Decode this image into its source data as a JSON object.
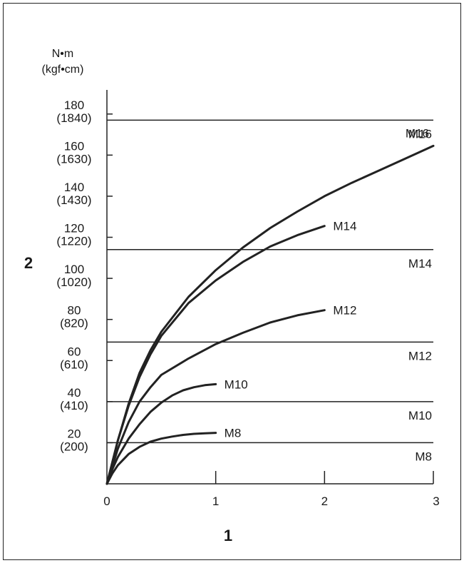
{
  "chart_data": {
    "type": "line",
    "y_unit_label_1": "N•m",
    "y_unit_label_2": "(kgf•cm)",
    "y_axis_marker": "2",
    "x_axis_marker": "1",
    "xlim": [
      0,
      3
    ],
    "ylim": [
      0,
      190
    ],
    "x_ticks": [
      {
        "value": 0,
        "label": "0"
      },
      {
        "value": 1,
        "label": "1"
      },
      {
        "value": 2,
        "label": "2"
      },
      {
        "value": 3,
        "label": "3"
      }
    ],
    "y_ticks": [
      {
        "value": 20,
        "label": "20",
        "label2": "(200)"
      },
      {
        "value": 40,
        "label": "40",
        "label2": "(410)"
      },
      {
        "value": 60,
        "label": "60",
        "label2": "(610)"
      },
      {
        "value": 80,
        "label": "80",
        "label2": "(820)"
      },
      {
        "value": 100,
        "label": "100",
        "label2": "(1020)"
      },
      {
        "value": 120,
        "label": "120",
        "label2": "(1220)"
      },
      {
        "value": 140,
        "label": "140",
        "label2": "(1430)"
      },
      {
        "value": 160,
        "label": "160",
        "label2": "(1630)"
      },
      {
        "value": 180,
        "label": "180",
        "label2": "(1840)"
      }
    ],
    "series": [
      {
        "name": "M8",
        "x": [
          0,
          0.05,
          0.1,
          0.2,
          0.3,
          0.4,
          0.5,
          0.6,
          0.7,
          0.8,
          0.9,
          1.0
        ],
        "y": [
          0,
          5,
          9,
          14.5,
          18,
          20.5,
          22,
          23,
          23.8,
          24.3,
          24.6,
          24.8
        ]
      },
      {
        "name": "M10",
        "x": [
          0,
          0.05,
          0.1,
          0.2,
          0.3,
          0.4,
          0.5,
          0.6,
          0.7,
          0.8,
          0.9,
          1.0
        ],
        "y": [
          0,
          7,
          13,
          22,
          29,
          35,
          39.5,
          43,
          45.5,
          47,
          48,
          48.5
        ]
      },
      {
        "name": "M12",
        "x": [
          0,
          0.1,
          0.2,
          0.3,
          0.4,
          0.5,
          0.75,
          1.0,
          1.25,
          1.5,
          1.75,
          2.0
        ],
        "y": [
          0,
          17,
          30,
          40,
          47,
          53,
          61,
          68,
          73.5,
          78.5,
          82,
          84.5
        ]
      },
      {
        "name": "M14",
        "x": [
          0,
          0.1,
          0.2,
          0.3,
          0.4,
          0.5,
          0.75,
          1.0,
          1.25,
          1.5,
          1.75,
          2.0
        ],
        "y": [
          0,
          21,
          38,
          52,
          63,
          72,
          88,
          99,
          108,
          115.5,
          121,
          125.5
        ]
      },
      {
        "name": "M16",
        "x": [
          0,
          0.1,
          0.2,
          0.3,
          0.4,
          0.5,
          0.75,
          1.0,
          1.25,
          1.5,
          1.75,
          2.0,
          2.25,
          2.5,
          2.75,
          3.0
        ],
        "y": [
          0,
          21,
          39,
          54,
          65,
          74,
          91,
          104,
          115,
          124.5,
          132.5,
          140,
          146.5,
          152.5,
          158.5,
          164.5
        ]
      }
    ],
    "hlines": [
      {
        "name": "M8",
        "y": 20
      },
      {
        "name": "M10",
        "y": 40
      },
      {
        "name": "M12",
        "y": 69
      },
      {
        "name": "M14",
        "y": 114
      },
      {
        "name": "M16",
        "y": 177
      }
    ],
    "grid": false,
    "legend": "none"
  }
}
